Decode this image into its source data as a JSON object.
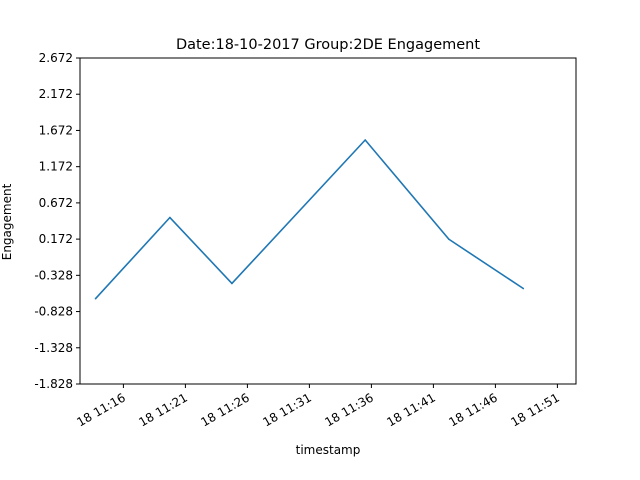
{
  "chart_data": {
    "type": "line",
    "title": "Date:18-10-2017 Group:2DE Engagement",
    "xlabel": "timestamp",
    "ylabel": "Engagement",
    "x_ticks": [
      "18 11:16",
      "18 11:21",
      "18 11:26",
      "18 11:31",
      "18 11:36",
      "18 11:41",
      "18 11:46",
      "18 11:51"
    ],
    "y_ticks": [
      "-1.828",
      "-1.328",
      "-0.828",
      "-0.328",
      "0.172",
      "0.672",
      "1.172",
      "1.672",
      "2.172",
      "2.672"
    ],
    "ylim": [
      -1.828,
      2.672
    ],
    "xlim": [
      "18 11:12:30",
      "18 11:52:30"
    ],
    "grid": false,
    "series": [
      {
        "color": "#1f77b4",
        "x": [
          "18 11:13:45",
          "18 11:19:45",
          "18 11:24:45",
          "18 11:35:30",
          "18 11:42:15",
          "18 11:48:15"
        ],
        "y": [
          -0.65,
          0.47,
          -0.44,
          1.54,
          0.17,
          -0.51
        ]
      }
    ]
  }
}
